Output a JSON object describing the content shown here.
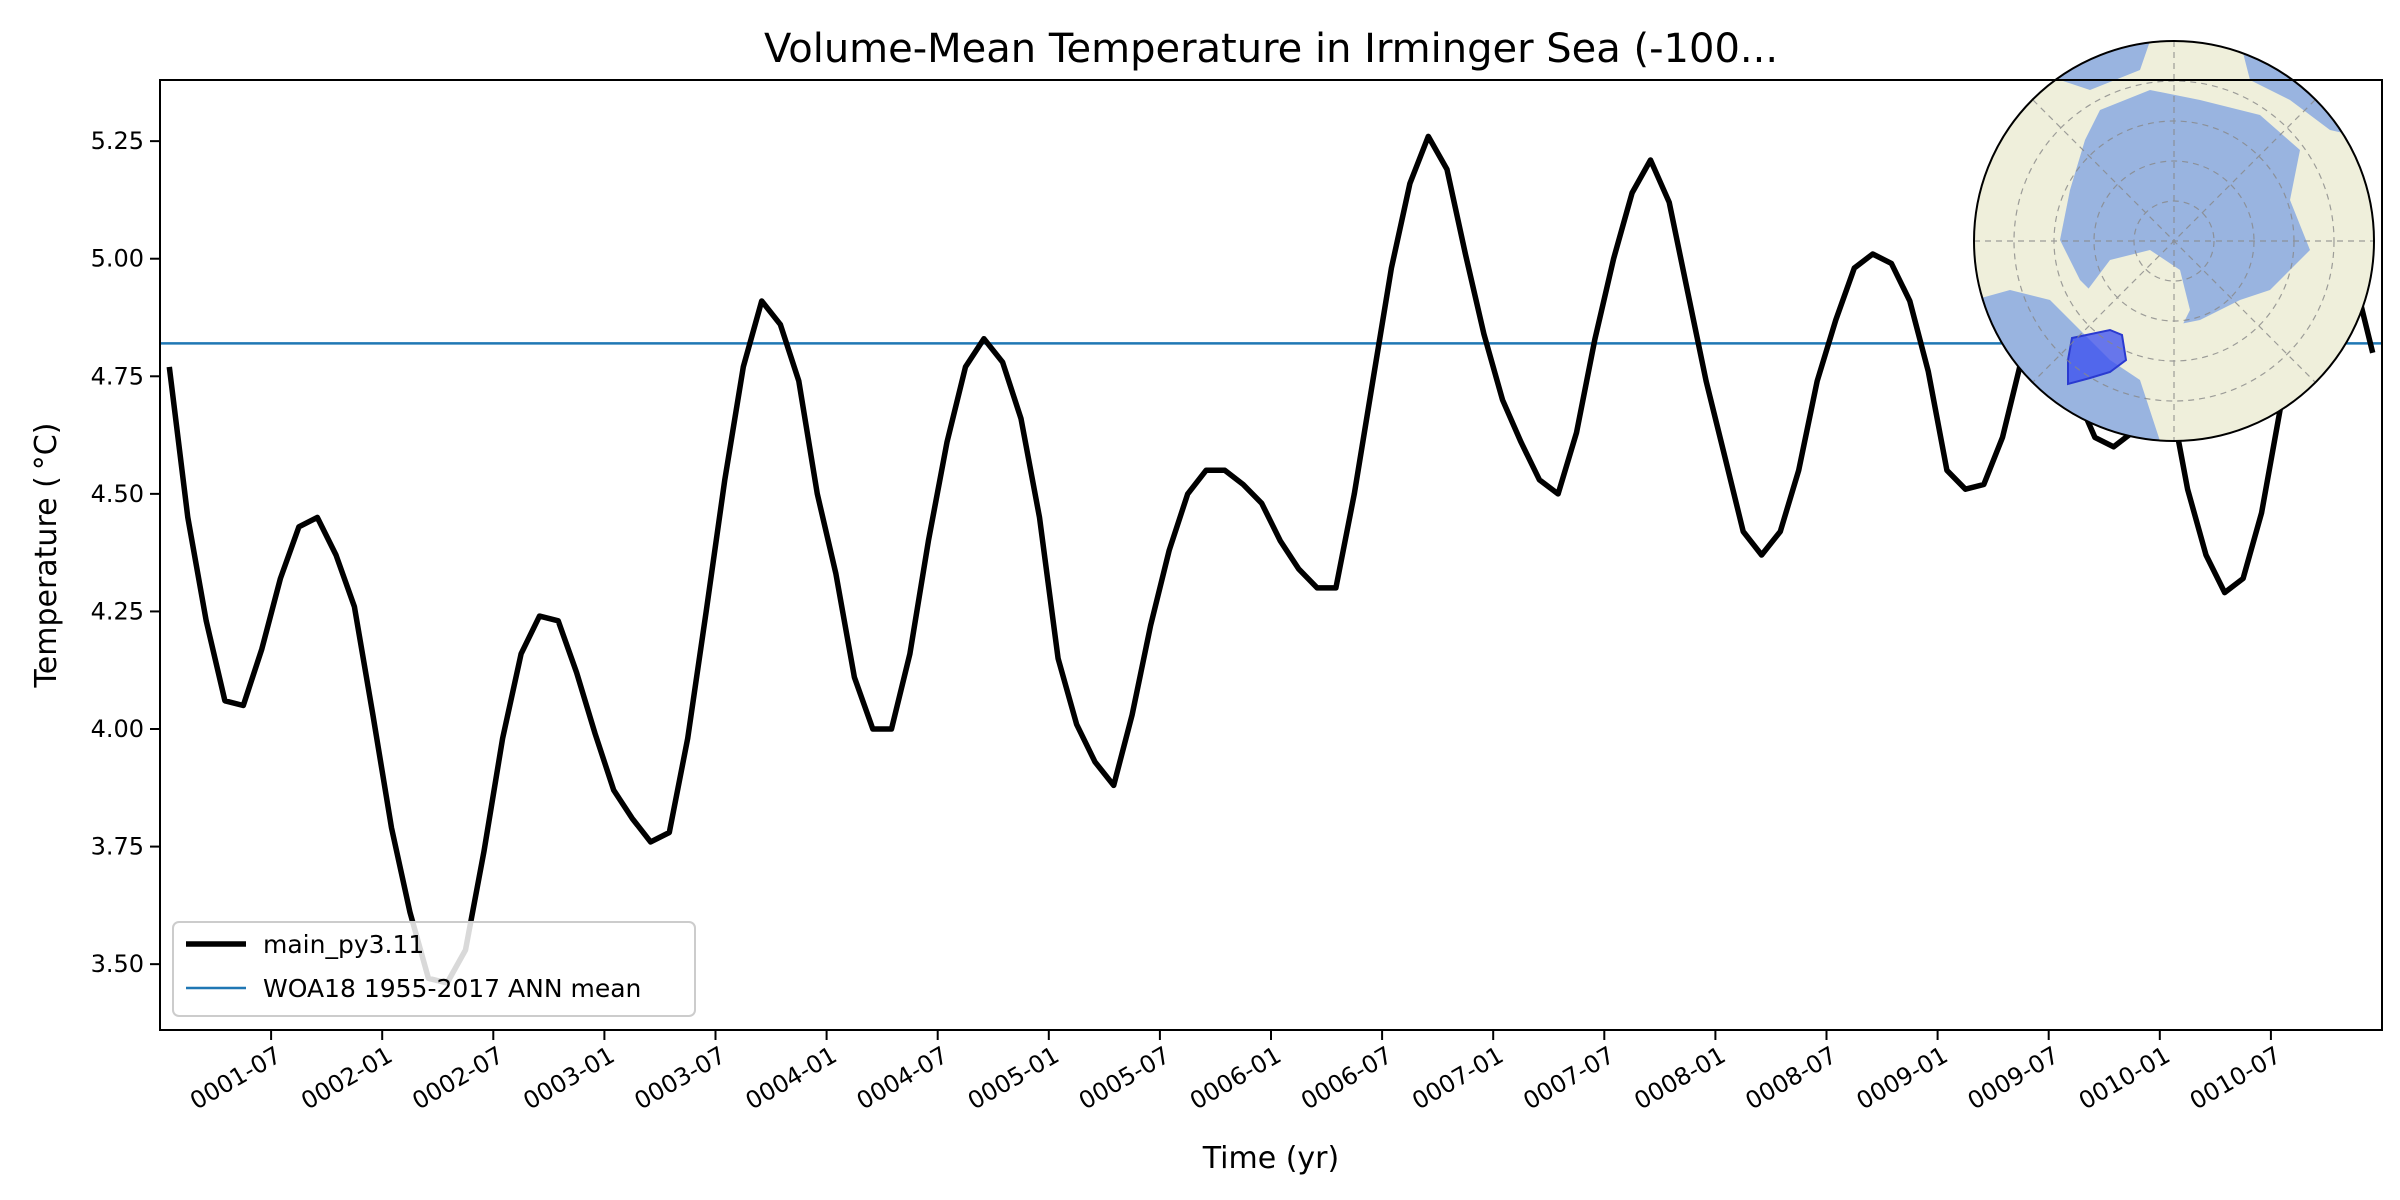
{
  "chart_data": {
    "type": "line",
    "title": "Volume-Mean Temperature in Irminger Sea (-100...",
    "xlabel": "Time (yr)",
    "ylabel": "Temperature ($^\\circ$C)",
    "ylabel_display": "Temperature ( °C)",
    "x_ticks": [
      "0001-07",
      "0002-01",
      "0002-07",
      "0003-01",
      "0003-07",
      "0004-01",
      "0004-07",
      "0005-01",
      "0005-07",
      "0006-01",
      "0006-07",
      "0007-01",
      "0007-07",
      "0008-01",
      "0008-07",
      "0009-01",
      "0009-07",
      "0010-01",
      "0010-07"
    ],
    "y_ticks": [
      "3.50",
      "3.75",
      "4.00",
      "4.25",
      "4.50",
      "4.75",
      "5.00",
      "5.25"
    ],
    "xlim": [
      0.0,
      10.0
    ],
    "ylim": [
      3.36,
      5.38
    ],
    "grid": false,
    "legend_position": "lower left",
    "series": [
      {
        "name": "main_py3.11",
        "color": "#000000",
        "x": [
          0.042,
          0.125,
          0.208,
          0.292,
          0.375,
          0.458,
          0.542,
          0.625,
          0.708,
          0.792,
          0.875,
          0.958,
          1.042,
          1.125,
          1.208,
          1.292,
          1.375,
          1.458,
          1.542,
          1.625,
          1.708,
          1.792,
          1.875,
          1.958,
          2.042,
          2.125,
          2.208,
          2.292,
          2.375,
          2.458,
          2.542,
          2.625,
          2.708,
          2.792,
          2.875,
          2.958,
          3.042,
          3.125,
          3.208,
          3.292,
          3.375,
          3.458,
          3.542,
          3.625,
          3.708,
          3.792,
          3.875,
          3.958,
          4.042,
          4.125,
          4.208,
          4.292,
          4.375,
          4.458,
          4.542,
          4.625,
          4.708,
          4.792,
          4.875,
          4.958,
          5.042,
          5.125,
          5.208,
          5.292,
          5.375,
          5.458,
          5.542,
          5.625,
          5.708,
          5.792,
          5.875,
          5.958,
          6.042,
          6.125,
          6.208,
          6.292,
          6.375,
          6.458,
          6.542,
          6.625,
          6.708,
          6.792,
          6.875,
          6.958,
          7.042,
          7.125,
          7.208,
          7.292,
          7.375,
          7.458,
          7.542,
          7.625,
          7.708,
          7.792,
          7.875,
          7.958,
          8.042,
          8.125,
          8.208,
          8.292,
          8.375,
          8.458,
          8.542,
          8.625,
          8.708,
          8.792,
          8.875,
          8.958,
          9.042,
          9.125,
          9.208,
          9.292,
          9.375,
          9.458,
          9.542,
          9.625,
          9.708,
          9.792,
          9.875,
          9.958
        ],
        "y": [
          4.77,
          4.45,
          4.23,
          4.06,
          4.05,
          4.17,
          4.32,
          4.43,
          4.45,
          4.37,
          4.26,
          4.03,
          3.79,
          3.61,
          3.47,
          3.46,
          3.53,
          3.74,
          3.98,
          4.16,
          4.24,
          4.23,
          4.12,
          3.99,
          3.87,
          3.81,
          3.76,
          3.78,
          3.98,
          4.25,
          4.53,
          4.77,
          4.91,
          4.86,
          4.74,
          4.5,
          4.33,
          4.11,
          4.0,
          4.0,
          4.16,
          4.4,
          4.61,
          4.77,
          4.83,
          4.78,
          4.66,
          4.45,
          4.15,
          4.01,
          3.93,
          3.88,
          4.03,
          4.22,
          4.38,
          4.5,
          4.55,
          4.55,
          4.52,
          4.48,
          4.4,
          4.34,
          4.3,
          4.3,
          4.5,
          4.74,
          4.98,
          5.16,
          5.26,
          5.19,
          5.01,
          4.84,
          4.7,
          4.61,
          4.53,
          4.5,
          4.63,
          4.83,
          5.0,
          5.14,
          5.21,
          5.12,
          4.93,
          4.74,
          4.58,
          4.42,
          4.37,
          4.42,
          4.55,
          4.74,
          4.87,
          4.98,
          5.01,
          4.99,
          4.91,
          4.76,
          4.55,
          4.51,
          4.52,
          4.62,
          4.78,
          4.87,
          4.81,
          4.71,
          4.62,
          4.6,
          4.63,
          4.73,
          4.72,
          4.51,
          4.37,
          4.29,
          4.32,
          4.46,
          4.68,
          4.83,
          4.94,
          5.01,
          4.96,
          4.8
        ]
      },
      {
        "name": "WOA18 1955-2017 ANN mean",
        "color": "#1f77b4",
        "constant": 4.82
      }
    ]
  },
  "inset_map": {
    "description_colors": {
      "land": "#efefdb",
      "ocean": "#99b4e0",
      "region": "#3a4ef0"
    }
  }
}
